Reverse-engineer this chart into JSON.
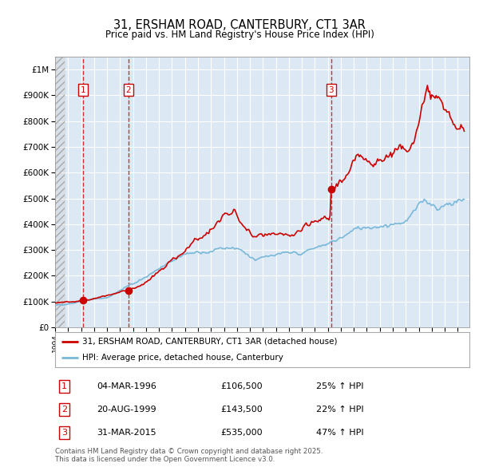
{
  "title_line1": "31, ERSHAM ROAD, CANTERBURY, CT1 3AR",
  "title_line2": "Price paid vs. HM Land Registry's House Price Index (HPI)",
  "ylim": [
    0,
    1050000
  ],
  "xlim_start": 1994.0,
  "xlim_end": 2025.9,
  "background_color": "#dce9f5",
  "hatch_color": "#aaaaaa",
  "grid_color": "#ffffff",
  "red_line_color": "#cc0000",
  "blue_line_color": "#7ab8d9",
  "vline_color": "#cc0000",
  "sale_points": [
    {
      "year": 1996.17,
      "price": 106500,
      "label": "1"
    },
    {
      "year": 1999.64,
      "price": 143500,
      "label": "2"
    },
    {
      "year": 2015.25,
      "price": 535000,
      "label": "3"
    }
  ],
  "annotations": [
    {
      "num": "1",
      "date": "04-MAR-1996",
      "price": "£106,500",
      "pct": "25% ↑ HPI"
    },
    {
      "num": "2",
      "date": "20-AUG-1999",
      "price": "£143,500",
      "pct": "22% ↑ HPI"
    },
    {
      "num": "3",
      "date": "31-MAR-2015",
      "price": "£535,000",
      "pct": "47% ↑ HPI"
    }
  ],
  "legend_entries": [
    "31, ERSHAM ROAD, CANTERBURY, CT1 3AR (detached house)",
    "HPI: Average price, detached house, Canterbury"
  ],
  "footer": "Contains HM Land Registry data © Crown copyright and database right 2025.\nThis data is licensed under the Open Government Licence v3.0.",
  "ytick_labels": [
    "£0",
    "£100K",
    "£200K",
    "£300K",
    "£400K",
    "£500K",
    "£600K",
    "£700K",
    "£800K",
    "£900K",
    "£1M"
  ],
  "ytick_values": [
    0,
    100000,
    200000,
    300000,
    400000,
    500000,
    600000,
    700000,
    800000,
    900000,
    1000000
  ]
}
